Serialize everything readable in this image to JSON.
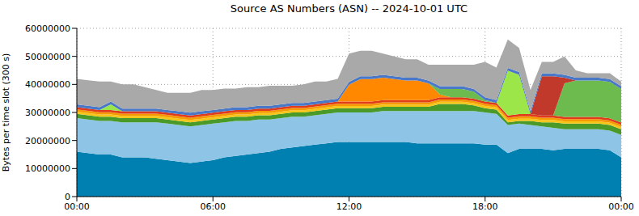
{
  "chart_data": {
    "type": "stacked_area",
    "title": "Source AS Numbers (ASN) -- 2024-10-01 UTC",
    "y_label": "Bytes per time slot (300 s)",
    "stacked": true,
    "grid": true,
    "ylim": [
      0,
      60000000
    ],
    "yticks": [
      0,
      10000000,
      20000000,
      30000000,
      40000000,
      50000000,
      60000000
    ],
    "categories": [
      "00:00",
      null,
      null,
      null,
      null,
      null,
      null,
      null,
      null,
      null,
      null,
      null,
      "06:00",
      null,
      null,
      null,
      null,
      null,
      null,
      null,
      null,
      null,
      null,
      null,
      "12:00",
      null,
      null,
      null,
      null,
      null,
      null,
      null,
      null,
      null,
      null,
      null,
      "18:00",
      null,
      null,
      null,
      null,
      null,
      null,
      null,
      null,
      null,
      null,
      null,
      "00:00"
    ],
    "series": [
      {
        "color": "#0080b0",
        "values": [
          16000000,
          15500000,
          15000000,
          15000000,
          14000000,
          14000000,
          14000000,
          13500000,
          13000000,
          12500000,
          12000000,
          12500000,
          13000000,
          14000000,
          14500000,
          15000000,
          15500000,
          16000000,
          17000000,
          17500000,
          18000000,
          18500000,
          19000000,
          19500000,
          19500000,
          19500000,
          19500000,
          19500000,
          19500000,
          19500000,
          19000000,
          19000000,
          19000000,
          19000000,
          19000000,
          19000000,
          18500000,
          18500000,
          15500000,
          17000000,
          17000000,
          17000000,
          16500000,
          17000000,
          17000000,
          17000000,
          17000000,
          16500000,
          14000000
        ]
      },
      {
        "color": "#8ec5e6",
        "values": [
          12000000,
          12000000,
          12000000,
          12000000,
          12500000,
          12500000,
          12500000,
          13000000,
          13000000,
          13000000,
          13000000,
          13000000,
          13000000,
          12500000,
          12500000,
          12000000,
          12000000,
          11500000,
          11000000,
          11000000,
          10500000,
          10500000,
          10500000,
          10500000,
          10500000,
          10500000,
          10500000,
          11000000,
          11000000,
          11000000,
          11500000,
          11500000,
          11500000,
          11500000,
          11500000,
          11500000,
          11500000,
          11000000,
          10000000,
          9000000,
          8500000,
          8000000,
          8000000,
          7000000,
          7000000,
          7000000,
          7000000,
          7000000,
          8000000
        ]
      },
      {
        "color": "#4a9a2a",
        "values": [
          1500000,
          1500000,
          1500000,
          1500000,
          1500000,
          1500000,
          1500000,
          1500000,
          1500000,
          1500000,
          1500000,
          1500000,
          1500000,
          1500000,
          1500000,
          1500000,
          1500000,
          1500000,
          1500000,
          1500000,
          1500000,
          1500000,
          1500000,
          1500000,
          1500000,
          1500000,
          1500000,
          1500000,
          1500000,
          1500000,
          1500000,
          1500000,
          2500000,
          2500000,
          2500000,
          2000000,
          1500000,
          1500000,
          1000000,
          1000000,
          1500000,
          1500000,
          2000000,
          2000000,
          2000000,
          2000000,
          2000000,
          2000000,
          2000000
        ]
      },
      {
        "color": "#f5c518",
        "values": [
          800000,
          800000,
          800000,
          800000,
          800000,
          800000,
          800000,
          800000,
          800000,
          800000,
          800000,
          800000,
          800000,
          800000,
          800000,
          800000,
          800000,
          800000,
          800000,
          800000,
          800000,
          800000,
          800000,
          800000,
          800000,
          800000,
          800000,
          800000,
          800000,
          800000,
          800000,
          800000,
          800000,
          800000,
          800000,
          800000,
          800000,
          800000,
          800000,
          800000,
          800000,
          800000,
          800000,
          800000,
          800000,
          800000,
          800000,
          800000,
          800000
        ]
      },
      {
        "color": "#f59a00",
        "values": [
          800000,
          800000,
          800000,
          800000,
          800000,
          800000,
          800000,
          800000,
          800000,
          800000,
          800000,
          800000,
          800000,
          800000,
          800000,
          800000,
          800000,
          800000,
          800000,
          800000,
          800000,
          800000,
          800000,
          800000,
          800000,
          800000,
          800000,
          800000,
          800000,
          800000,
          800000,
          800000,
          800000,
          800000,
          800000,
          800000,
          800000,
          800000,
          800000,
          800000,
          800000,
          800000,
          800000,
          800000,
          800000,
          800000,
          800000,
          800000,
          800000
        ]
      },
      {
        "color": "#e03c1c",
        "values": [
          800000,
          800000,
          800000,
          800000,
          800000,
          800000,
          800000,
          800000,
          800000,
          800000,
          800000,
          800000,
          800000,
          800000,
          800000,
          800000,
          800000,
          800000,
          800000,
          800000,
          800000,
          800000,
          800000,
          800000,
          800000,
          800000,
          800000,
          800000,
          800000,
          800000,
          800000,
          800000,
          800000,
          800000,
          800000,
          800000,
          800000,
          800000,
          800000,
          800000,
          800000,
          800000,
          800000,
          800000,
          800000,
          800000,
          800000,
          800000,
          800000
        ]
      },
      {
        "color": "#ff8800",
        "values": [
          0,
          0,
          0,
          0,
          0,
          0,
          0,
          0,
          0,
          0,
          0,
          0,
          0,
          0,
          0,
          0,
          0,
          0,
          0,
          0,
          0,
          0,
          0,
          0,
          6000000,
          8000000,
          8000000,
          8000000,
          7500000,
          7000000,
          7000000,
          6000000,
          1000000,
          0,
          0,
          0,
          0,
          0,
          0,
          0,
          0,
          0,
          0,
          0,
          0,
          0,
          0,
          0,
          0
        ]
      },
      {
        "color": "#6dba4f",
        "values": [
          0,
          0,
          0,
          0,
          0,
          0,
          0,
          0,
          0,
          0,
          0,
          0,
          0,
          0,
          0,
          0,
          0,
          0,
          0,
          0,
          0,
          0,
          0,
          0,
          0,
          0,
          0,
          0,
          0,
          0,
          0,
          0,
          2000000,
          3000000,
          3000000,
          2500000,
          500000,
          0,
          0,
          0,
          0,
          0,
          0,
          12000000,
          13000000,
          13000000,
          13000000,
          13000000,
          12000000
        ]
      },
      {
        "color": "#9de64a",
        "values": [
          0,
          0,
          0,
          2000000,
          0,
          0,
          0,
          0,
          0,
          0,
          0,
          0,
          0,
          0,
          0,
          0,
          0,
          0,
          0,
          0,
          0,
          0,
          0,
          0,
          0,
          0,
          0,
          0,
          0,
          0,
          0,
          0,
          0,
          0,
          0,
          0,
          0,
          0,
          16000000,
          14000000,
          0,
          0,
          0,
          0,
          0,
          0,
          0,
          0,
          0
        ]
      },
      {
        "color": "#c0392b",
        "values": [
          0,
          0,
          0,
          0,
          0,
          0,
          0,
          0,
          0,
          0,
          0,
          0,
          0,
          0,
          0,
          0,
          0,
          0,
          0,
          0,
          0,
          0,
          0,
          0,
          0,
          0,
          0,
          0,
          0,
          0,
          0,
          0,
          0,
          0,
          0,
          0,
          0,
          0,
          0,
          0,
          0,
          14000000,
          14000000,
          2000000,
          0,
          0,
          0,
          0,
          0
        ]
      },
      {
        "color": "#4a78c8",
        "values": [
          1000000,
          1000000,
          1000000,
          1000000,
          1000000,
          1000000,
          1000000,
          1000000,
          1000000,
          1000000,
          1000000,
          1000000,
          1000000,
          1000000,
          1000000,
          1000000,
          1000000,
          1000000,
          1000000,
          1000000,
          1000000,
          1000000,
          1000000,
          1000000,
          1000000,
          1000000,
          1000000,
          1000000,
          1000000,
          1000000,
          1000000,
          1000000,
          1000000,
          1000000,
          1000000,
          1000000,
          1000000,
          1000000,
          1000000,
          1000000,
          1000000,
          1000000,
          1000000,
          1000000,
          1000000,
          1000000,
          1000000,
          1000000,
          1000000
        ]
      },
      {
        "color": "#a9a9a9",
        "values": [
          9100000,
          9100000,
          9100000,
          7100000,
          8600000,
          8600000,
          7600000,
          6600000,
          6100000,
          6600000,
          7100000,
          7600000,
          7100000,
          7100000,
          6600000,
          7100000,
          6600000,
          7100000,
          6600000,
          6100000,
          6600000,
          7100000,
          6600000,
          7100000,
          10100000,
          9100000,
          9100000,
          7600000,
          7100000,
          6600000,
          6600000,
          5600000,
          7600000,
          7600000,
          7600000,
          8600000,
          12600000,
          11600000,
          10100000,
          8600000,
          7600000,
          4100000,
          4100000,
          6600000,
          2600000,
          1600000,
          1600000,
          2100000,
          1600000
        ]
      }
    ]
  }
}
